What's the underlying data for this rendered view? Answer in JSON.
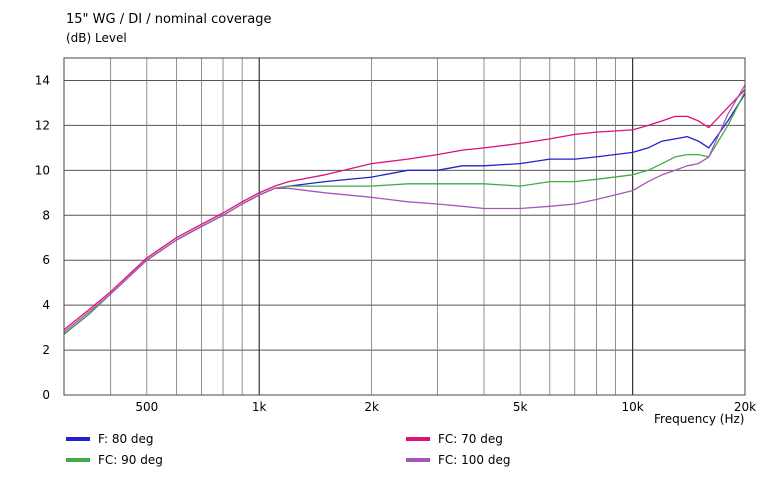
{
  "chart_data": {
    "type": "line",
    "title": "15\" WG / DI / nominal coverage",
    "ylabel": "(dB)  Level",
    "xlabel": "Frequency  (Hz)",
    "xscale": "log",
    "xlim": [
      300,
      20000
    ],
    "ylim": [
      0,
      15
    ],
    "grid": true,
    "legend_position": "bottom",
    "y_ticks": [
      0,
      2,
      4,
      6,
      8,
      10,
      12,
      14
    ],
    "x_ticks": [
      {
        "value": 500,
        "label": "500"
      },
      {
        "value": 1000,
        "label": "1k"
      },
      {
        "value": 2000,
        "label": "2k"
      },
      {
        "value": 5000,
        "label": "5k"
      },
      {
        "value": 10000,
        "label": "10k"
      },
      {
        "value": 20000,
        "label": "20k"
      }
    ],
    "series": [
      {
        "name": "F: 80 deg",
        "color": "#2222cc",
        "x": [
          300,
          350,
          400,
          500,
          600,
          700,
          800,
          900,
          1000,
          1100,
          1200,
          1500,
          2000,
          2500,
          3000,
          3500,
          4000,
          5000,
          6000,
          7000,
          8000,
          10000,
          11000,
          12000,
          13000,
          14000,
          15000,
          16000,
          18000,
          20000
        ],
        "values": [
          2.7,
          3.6,
          4.5,
          6.0,
          6.9,
          7.5,
          8.0,
          8.5,
          8.9,
          9.2,
          9.3,
          9.5,
          9.7,
          10.0,
          10.0,
          10.2,
          10.2,
          10.3,
          10.5,
          10.5,
          10.6,
          10.8,
          11.0,
          11.3,
          11.4,
          11.5,
          11.3,
          11.0,
          12.2,
          13.4
        ]
      },
      {
        "name": "FC: 90 deg",
        "color": "#44aa44",
        "x": [
          300,
          350,
          400,
          500,
          600,
          700,
          800,
          900,
          1000,
          1100,
          1200,
          1500,
          2000,
          2500,
          3000,
          3500,
          4000,
          5000,
          6000,
          7000,
          8000,
          10000,
          11000,
          12000,
          13000,
          14000,
          15000,
          16000,
          18000,
          20000
        ],
        "values": [
          2.7,
          3.6,
          4.5,
          6.0,
          6.9,
          7.5,
          8.0,
          8.5,
          8.9,
          9.2,
          9.3,
          9.3,
          9.3,
          9.4,
          9.4,
          9.4,
          9.4,
          9.3,
          9.5,
          9.5,
          9.6,
          9.8,
          10.0,
          10.3,
          10.6,
          10.7,
          10.7,
          10.6,
          12.0,
          13.5
        ]
      },
      {
        "name": "FC: 70 deg",
        "color": "#dd1177",
        "x": [
          300,
          350,
          400,
          500,
          600,
          700,
          800,
          900,
          1000,
          1100,
          1200,
          1500,
          2000,
          2500,
          3000,
          3500,
          4000,
          5000,
          6000,
          7000,
          8000,
          10000,
          11000,
          12000,
          13000,
          14000,
          15000,
          16000,
          18000,
          20000
        ],
        "values": [
          2.9,
          3.8,
          4.6,
          6.1,
          7.0,
          7.6,
          8.1,
          8.6,
          9.0,
          9.3,
          9.5,
          9.8,
          10.3,
          10.5,
          10.7,
          10.9,
          11.0,
          11.2,
          11.4,
          11.6,
          11.7,
          11.8,
          12.0,
          12.2,
          12.4,
          12.4,
          12.2,
          11.9,
          12.8,
          13.6
        ]
      },
      {
        "name": "FC: 100 deg",
        "color": "#aa55bb",
        "x": [
          300,
          350,
          400,
          500,
          600,
          700,
          800,
          900,
          1000,
          1100,
          1200,
          1500,
          2000,
          2500,
          3000,
          3500,
          4000,
          5000,
          6000,
          7000,
          8000,
          10000,
          11000,
          12000,
          13000,
          14000,
          15000,
          16000,
          18000,
          20000
        ],
        "values": [
          2.8,
          3.7,
          4.5,
          6.0,
          6.9,
          7.5,
          8.0,
          8.5,
          8.9,
          9.2,
          9.2,
          9.0,
          8.8,
          8.6,
          8.5,
          8.4,
          8.3,
          8.3,
          8.4,
          8.5,
          8.7,
          9.1,
          9.5,
          9.8,
          10.0,
          10.2,
          10.3,
          10.6,
          12.5,
          13.8
        ]
      }
    ]
  }
}
